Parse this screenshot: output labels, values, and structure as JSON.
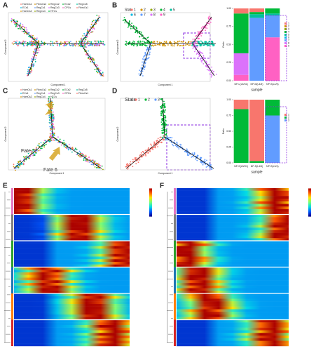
{
  "panels": {
    "labels": [
      "A",
      "B",
      "C",
      "D",
      "E",
      "F"
    ],
    "state_title": "State",
    "fates": [
      "Fate 5",
      "Fate 6"
    ],
    "x_axis": "Component 1",
    "y_axis": "Component 2",
    "cell_types": [
      "HomCs1",
      "FibroCs2",
      "RegCs2",
      "ECs2",
      "RegCs5",
      "ECs1",
      "RegCs1",
      "RegCs3",
      "CPCs",
      "FibroCs1",
      "HomCs2",
      "RegCs4",
      "HTCs"
    ]
  },
  "chart_data": [
    {
      "type": "bar",
      "stacked": true,
      "xlabel": "sample",
      "ylabel": "Ratio",
      "categories": [
        "NP-L(L5/S1)",
        "NP-M(L4/5)",
        "NP-S(L4/5)"
      ],
      "ylim": [
        0,
        1
      ],
      "yticks": [
        {
          "value": 0,
          "label": "0.00"
        },
        {
          "value": 0.25,
          "label": "0.25"
        },
        {
          "value": 0.5,
          "label": "0.50"
        },
        {
          "value": 0.75,
          "label": "0.75"
        },
        {
          "value": 1,
          "label": "1.00"
        }
      ],
      "series": [
        {
          "name": "1",
          "color": "#F8766D",
          "values": [
            0.07,
            0.05,
            0
          ]
        },
        {
          "name": "2",
          "color": "#D39200",
          "values": [
            0,
            0,
            0
          ]
        },
        {
          "name": "3",
          "color": "#93AA00",
          "values": [
            0,
            0,
            0
          ]
        },
        {
          "name": "4",
          "color": "#00BA38",
          "values": [
            0.55,
            0.03,
            0.07
          ]
        },
        {
          "name": "5",
          "color": "#00C19F",
          "values": [
            0,
            0.05,
            0.03
          ]
        },
        {
          "name": "6",
          "color": "#00B9E3",
          "values": [
            0,
            0,
            0
          ]
        },
        {
          "name": "7",
          "color": "#619CFF",
          "values": [
            0,
            0.87,
            0.3
          ]
        },
        {
          "name": "8",
          "color": "#DB72FB",
          "values": [
            0.3,
            0,
            0
          ]
        },
        {
          "name": "9",
          "color": "#FF61C3",
          "values": [
            0.08,
            0,
            0.6
          ]
        }
      ]
    },
    {
      "type": "bar",
      "stacked": true,
      "xlabel": "sample",
      "ylabel": "Ratio",
      "categories": [
        "NP-S(L5/S1)",
        "NP-S(L4/5)",
        "NP-S(L3/4)"
      ],
      "ylim": [
        0,
        1
      ],
      "yticks": [
        {
          "value": 0,
          "label": "0.00"
        },
        {
          "value": 0.25,
          "label": "0.25"
        },
        {
          "value": 0.5,
          "label": "0.50"
        },
        {
          "value": 0.75,
          "label": "0.75"
        },
        {
          "value": 1,
          "label": "1.00"
        }
      ],
      "series": [
        {
          "name": "1",
          "color": "#F8766D",
          "values": [
            0.15,
            0.97,
            0
          ]
        },
        {
          "name": "2",
          "color": "#00BA38",
          "values": [
            0.85,
            0.03,
            0.25
          ]
        },
        {
          "name": "3",
          "color": "#619CFF",
          "values": [
            0,
            0,
            0.75
          ]
        }
      ]
    }
  ]
}
